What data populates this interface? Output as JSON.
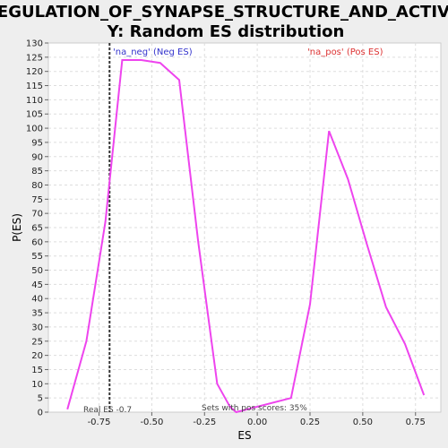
{
  "chart_data": {
    "type": "line",
    "title_lines": [
      "REGULATION_OF_SYNAPSE_STRUCTURE_AND_ACTIVIT",
      "Y: Random ES distribution"
    ],
    "xlabel": "ES",
    "ylabel": "P(ES)",
    "xlim": [
      -0.99,
      0.87
    ],
    "ylim": [
      0,
      130
    ],
    "x_ticks": [
      -0.75,
      -0.5,
      -0.25,
      0.0,
      0.25,
      0.5,
      0.75
    ],
    "x_tick_labels": [
      "-0.75",
      "-0.50",
      "-0.25",
      "0.00",
      "0.25",
      "0.50",
      "0.75"
    ],
    "y_ticks": [
      0,
      5,
      10,
      15,
      20,
      25,
      30,
      35,
      40,
      45,
      50,
      55,
      60,
      65,
      70,
      75,
      80,
      85,
      90,
      95,
      100,
      105,
      110,
      115,
      120,
      125,
      130
    ],
    "grid": true,
    "line_color": "#ee44ee",
    "series": [
      {
        "x": [
          -0.9,
          -0.81,
          -0.72,
          -0.64,
          -0.55,
          -0.46,
          -0.37,
          -0.28,
          -0.19,
          -0.13,
          -0.1,
          0.16,
          0.25,
          0.34,
          0.43,
          0.52,
          0.61,
          0.7,
          0.79
        ],
        "y": [
          1,
          25,
          67,
          124,
          124,
          123,
          117,
          60,
          10,
          2,
          0,
          5,
          38,
          99,
          82,
          59,
          37,
          24,
          6
        ]
      }
    ],
    "real_es": -0.7,
    "annotations": {
      "neg_label": "'na_neg' (Neg ES)",
      "pos_label": "'na_pos' (Pos ES)",
      "real_es_label": "Real ES -0.7",
      "pos_scores_label": "Sets with pos scores: 35%"
    },
    "colors": {
      "neg": "#3333cc",
      "pos": "#dd3333",
      "real_es_line": "#333333"
    }
  }
}
